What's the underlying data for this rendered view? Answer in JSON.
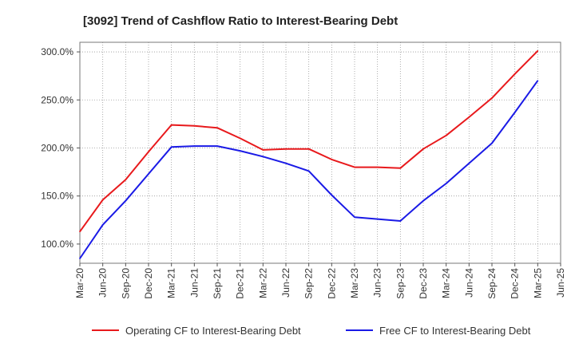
{
  "chart_data": {
    "type": "line",
    "title": "[3092]  Trend of Cashflow Ratio to Interest-Bearing Debt",
    "xlabel": "",
    "ylabel": "",
    "x": [
      "Mar-20",
      "Jun-20",
      "Sep-20",
      "Dec-20",
      "Mar-21",
      "Jun-21",
      "Sep-21",
      "Dec-21",
      "Mar-22",
      "Jun-22",
      "Sep-22",
      "Dec-22",
      "Mar-23",
      "Jun-23",
      "Sep-23",
      "Dec-23",
      "Mar-24",
      "Jun-24",
      "Sep-24",
      "Dec-24",
      "Mar-25",
      "Jun-25"
    ],
    "ylim": [
      80,
      310
    ],
    "yticks": [
      100,
      150,
      200,
      250,
      300
    ],
    "ytick_labels": [
      "100.0%",
      "150.0%",
      "200.0%",
      "250.0%",
      "300.0%"
    ],
    "grid": true,
    "legend_position": "bottom",
    "series": [
      {
        "name": "Operating CF to Interest-Bearing Debt",
        "color": "#e8191c",
        "values": [
          113,
          146,
          167,
          196,
          224,
          223,
          221,
          210,
          198,
          199,
          199,
          188,
          180,
          180,
          179,
          199,
          213,
          232,
          252,
          277,
          301,
          null
        ]
      },
      {
        "name": "Free CF to Interest-Bearing Debt",
        "color": "#1a1ae6",
        "values": [
          85,
          120,
          145,
          173,
          201,
          202,
          202,
          197,
          191,
          184,
          176,
          151,
          128,
          126,
          124,
          145,
          163,
          184,
          205,
          237,
          270,
          null
        ]
      }
    ]
  }
}
